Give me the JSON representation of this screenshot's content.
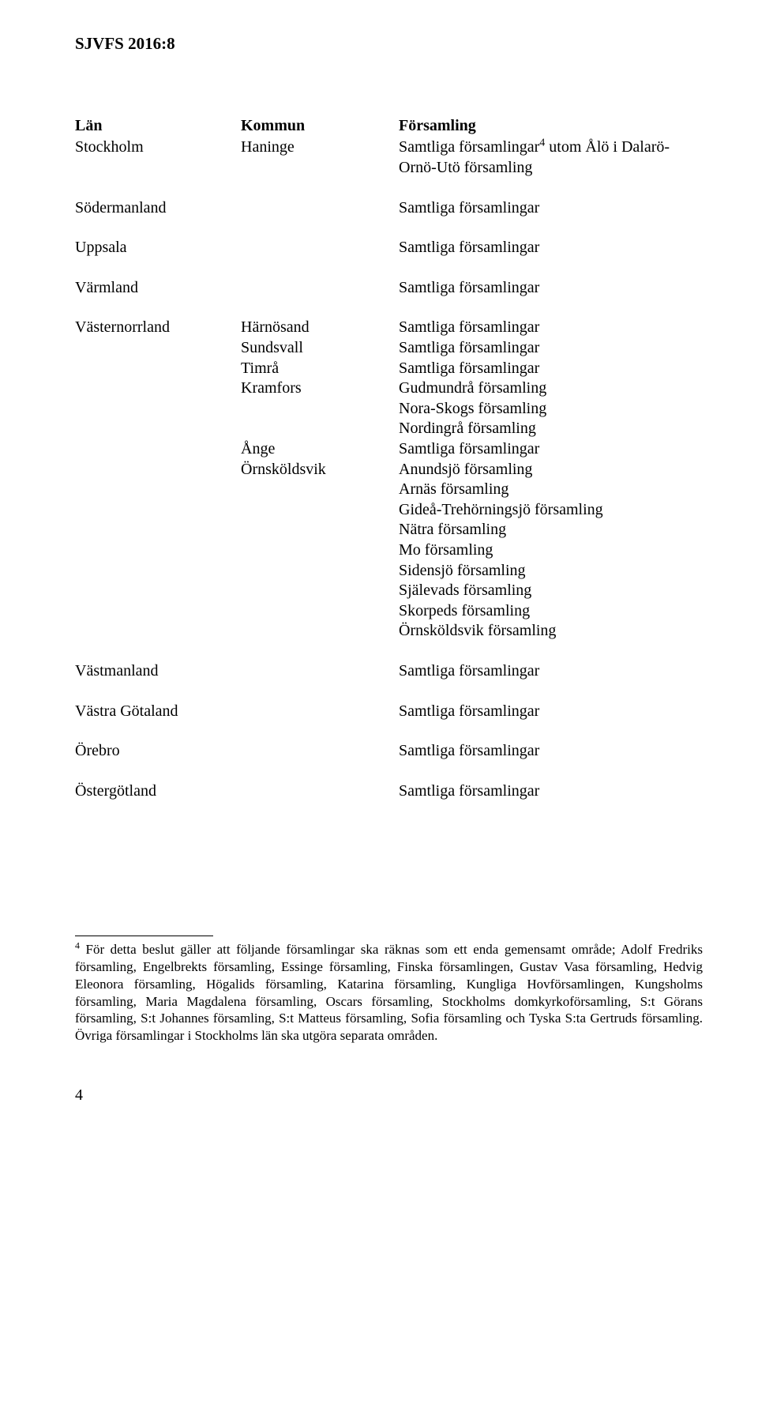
{
  "doc_header": "SJVFS 2016:8",
  "header": {
    "c1": "Län",
    "c2": "Kommun",
    "c3": "Församling"
  },
  "rows": [
    {
      "lan": "Stockholm",
      "kommun": "Haninge",
      "forsamling_lines": [
        "Samtliga församlingar",
        " utom Ålö i Dalarö-Ornö-Utö församling"
      ],
      "sup_after_first": "4",
      "gap": "none"
    },
    {
      "lan": "Södermanland",
      "kommun": "",
      "forsamling_lines": [
        "Samtliga församlingar"
      ],
      "gap": "big"
    },
    {
      "lan": "Uppsala",
      "kommun": "",
      "forsamling_lines": [
        "Samtliga församlingar"
      ],
      "gap": "big"
    },
    {
      "lan": "Värmland",
      "kommun": "",
      "forsamling_lines": [
        "Samtliga församlingar"
      ],
      "gap": "big"
    },
    {
      "lan": "Västernorrland",
      "kommun": "Härnösand",
      "forsamling_lines": [
        "Samtliga församlingar"
      ],
      "gap": "big"
    },
    {
      "lan": "",
      "kommun": "Sundsvall",
      "forsamling_lines": [
        "Samtliga församlingar"
      ],
      "gap": "none"
    },
    {
      "lan": "",
      "kommun": "Timrå",
      "forsamling_lines": [
        "Samtliga församlingar"
      ],
      "gap": "none"
    },
    {
      "lan": "",
      "kommun": "Kramfors",
      "forsamling_lines": [
        "Gudmundrå församling",
        "Nora-Skogs församling",
        "Nordingrå församling"
      ],
      "gap": "none"
    },
    {
      "lan": "",
      "kommun": "Ånge",
      "forsamling_lines": [
        "Samtliga församlingar"
      ],
      "gap": "none"
    },
    {
      "lan": "",
      "kommun": "Örnsköldsvik",
      "forsamling_lines": [
        "Anundsjö församling",
        "Arnäs församling",
        "Gideå-Trehörningsjö församling",
        "Nätra församling",
        "Mo församling",
        "Sidensjö församling",
        "Själevads församling",
        "Skorpeds församling",
        "Örnsköldsvik församling"
      ],
      "gap": "none"
    },
    {
      "lan": "Västmanland",
      "kommun": "",
      "forsamling_lines": [
        "Samtliga församlingar"
      ],
      "gap": "big"
    },
    {
      "lan": "Västra Götaland",
      "kommun": "",
      "forsamling_lines": [
        "Samtliga församlingar"
      ],
      "gap": "big"
    },
    {
      "lan": "Örebro",
      "kommun": "",
      "forsamling_lines": [
        "Samtliga församlingar"
      ],
      "gap": "big"
    },
    {
      "lan": "Östergötland",
      "kommun": "",
      "forsamling_lines": [
        "Samtliga församlingar"
      ],
      "gap": "big"
    }
  ],
  "footnote": {
    "marker": "4",
    "text": " För detta beslut gäller att följande församlingar ska räknas som ett enda gemensamt område; Adolf Fredriks församling, Engelbrekts församling, Essinge församling, Finska församlingen, Gustav Vasa församling, Hedvig Eleonora församling, Högalids församling, Katarina församling, Kungliga Hovförsamlingen, Kungsholms församling, Maria Magdalena församling, Oscars församling, Stockholms domkyrkoförsamling, S:t Görans församling, S:t Johannes församling, S:t Matteus församling, Sofia församling och Tyska S:ta Gertruds församling. Övriga församlingar i Stockholms län ska utgöra separata områden."
  },
  "page_number": "4"
}
